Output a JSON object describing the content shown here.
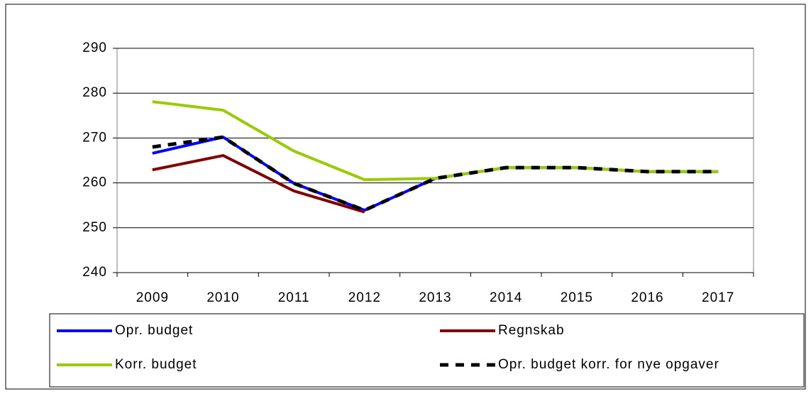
{
  "chart_data": {
    "type": "line",
    "categories": [
      "2009",
      "2010",
      "2011",
      "2012",
      "2013",
      "2014",
      "2015",
      "2016",
      "2017"
    ],
    "series": [
      {
        "name": "Opr. budget",
        "color": "#0000ff",
        "values": [
          266.6,
          270.2,
          259.9,
          253.9,
          261.0,
          263.4,
          263.4,
          262.5,
          262.5
        ]
      },
      {
        "name": "Regnskab",
        "color": "#800000",
        "values": [
          262.9,
          266.1,
          258.2,
          253.5,
          null,
          null,
          null,
          null,
          null
        ]
      },
      {
        "name": "Korr. budget",
        "color": "#99cc00",
        "values": [
          278.1,
          276.2,
          267.1,
          260.7,
          261.0,
          263.4,
          263.4,
          262.5,
          262.5
        ]
      },
      {
        "name": "Opr. budget korr. for nye opgaver",
        "color": "#000000",
        "dashed": true,
        "values": [
          268.0,
          270.2,
          259.9,
          253.9,
          261.0,
          263.4,
          263.4,
          262.5,
          262.5
        ]
      }
    ],
    "ylim": [
      240,
      290
    ],
    "yticks": [
      240,
      250,
      260,
      270,
      280,
      290
    ],
    "grid": true
  }
}
